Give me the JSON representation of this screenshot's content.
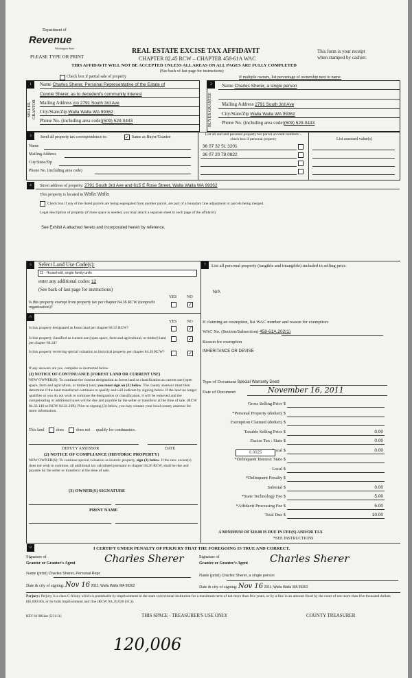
{
  "header": {
    "logo_top": "Department of",
    "logo_main": "Revenue",
    "logo_sub": "Washington State",
    "type_print": "PLEASE TYPE OR PRINT",
    "title": "REAL ESTATE EXCISE TAX AFFIDAVIT",
    "chapter": "CHAPTER 82.45 RCW – CHAPTER 458-61A WAC",
    "warning": "THIS AFFIDAVIT WILL NOT BE ACCEPTED UNLESS ALL AREAS ON ALL PAGES ARE FULLY COMPLETED",
    "see_back": "(See back of last page for instructions)",
    "receipt_1": "This form is your receipt",
    "receipt_2": "when stamped by cashier.",
    "partial_sale": "Check box if partial sale of property",
    "multiple_owners": "If multiple owners, list percentage of ownership next to name."
  },
  "seller": {
    "num": "1",
    "side": "SELLER GRANTOR",
    "name_label": "Name",
    "name_1": "Charles Sherer, Personal Representative of the Estate of",
    "name_2": "Connie Sherer, as to decedent's community interest",
    "mail_label": "Mailing Address",
    "mail": "c/o 2791 South 3rd Ave",
    "city_label": "City/State/Zip",
    "city": "Walla Walla WA 99362",
    "phone_label": "Phone No. (including area code)",
    "phone": "(509) 529-0443"
  },
  "buyer": {
    "num": "2",
    "side": "BUYER GRANTEE",
    "name_label": "Name",
    "name_1": "Charles Sherer, a single person",
    "mail_label": "Mailing Address",
    "mail": "2791 South 3rd Ave",
    "city_label": "City/State/Zip",
    "city": "Walla Walla WA 99362",
    "phone_label": "Phone No. (including area code)",
    "phone": "(509) 529-0443"
  },
  "section3": {
    "num": "3",
    "send_label": "Send all property tax correspondence to:",
    "same_as": "Same as Buyer/Grantee",
    "same_checked": true,
    "name_label": "Name",
    "mail_label": "Mailing Address",
    "city_label": "City/State/Zip",
    "phone_label": "Phone No. (including area code)",
    "parcel_header": "List all real and personal property tax parcel account numbers – check box if personal property",
    "assessed_header": "List assessed value(s)",
    "parcels": [
      "36 07 32 51 3201",
      "36 07 20 78 0822",
      "",
      ""
    ]
  },
  "section4": {
    "num": "4",
    "street_label": "Street address of property:",
    "street": "2791 South 3rd Ave and 615 E Rose Street, Walla Walla WA 99362",
    "located_label": "This property is located in",
    "located": "Walla Walla",
    "segregated": "Check box if any of the listed parcels are being segregated from another parcel, are part of a boundary line adjustment or parcels being merged.",
    "legal_label": "Legal description of property (if more space is needed, you may attach a separate sheet to each page of the affidavit)",
    "legal": "See Exhibit A attached hereto and incorporated herein by reference."
  },
  "section5": {
    "num": "5",
    "title": "Select Land Use Code(s):",
    "code": "11 - Household, single family units",
    "additional_label": "enter any additional codes:",
    "additional": "12",
    "see_back": "(See back of last page for instructions)",
    "yes": "YES",
    "no": "NO",
    "exempt_q": "Is this property exempt from property tax per chapter 84.36 RCW (nonprofit organization)?",
    "exempt_ans": "NO"
  },
  "section6": {
    "num": "6",
    "yes": "YES",
    "no": "NO",
    "questions": [
      {
        "q": "Is this property designated as forest land per chapter 84.33 RCW?",
        "ans": "NO"
      },
      {
        "q": "Is this property classified as current use (open space, farm and agricultural, or timber) land per chapter 84.34?",
        "ans": "NO"
      },
      {
        "q": "Is this property receiving special valuation as historical property per chapter 84.26 RCW?",
        "ans": "NO"
      }
    ],
    "if_yes": "If any answers are yes, complete as instructed below.",
    "notice1_title": "(1) NOTICE OF CONTINUANCE (FOREST LAND OR CURRENT USE)",
    "notice1_a": "NEW OWNER(S): To continue the current designation as forest land or classification as current use (open space, farm and agriculture, or timber) land, ",
    "notice1_bold": "you must sign on (3) below",
    "notice1_b": ". The county assessor must then determine if the land transferred continues to qualify and will indicate by signing below. If the land no longer qualifies or you do not wish to continue the designation or classification, it will be removed and the compensating or additional taxes will be due and payable by the seller or transferor at the time of sale. (RCW 84.33.140 or RCW 84.34.108). Prior to signing (3) below, you may contact your local county assessor for more information.",
    "this_land": "This land",
    "does": "does",
    "does_not": "does not",
    "qualify": "qualify for continuance.",
    "deputy": "DEPUTY ASSESSOR",
    "date": "DATE",
    "notice2_title": "(2) NOTICE OF COMPLIANCE (HISTORIC PROPERTY)",
    "notice2_a": "NEW OWNER(S): To continue special valuation as historic property, ",
    "notice2_bold": "sign (3) below",
    "notice2_b": ". If the new owner(s) does not wish to continue, all additional tax calculated pursuant to chapter 84.26 RCW, shall be due and payable by the seller or transferor at the time of sale.",
    "owner_sig": "(3) OWNER(S) SIGNATURE",
    "print_name": "PRINT NAME"
  },
  "section7": {
    "num": "7",
    "personal_label": "List all personal property (tangible and intangible) included in selling price.",
    "personal": "N/A",
    "exemption_label": "If claiming an exemption, list WAC number and reason for exemption:",
    "wac_label": "WAC No. (Section/Subsection)",
    "wac": "458-61A.202(1)",
    "reason_label": "Reason for exemption",
    "reason": "INHERITANCE OR DEVISE",
    "doc_type_label": "Type of Document",
    "doc_type": "Special Warranty Deed",
    "doc_date_label": "Date of Document",
    "doc_date": "November 16, 2011",
    "local_rate": "0.0025",
    "fees": [
      {
        "label": "Gross Selling Price $",
        "value": ""
      },
      {
        "label": "*Personal Property (deduct) $",
        "value": ""
      },
      {
        "label": "Exemption Claimed (deduct) $",
        "value": ""
      },
      {
        "label": "Taxable Selling Price $",
        "value": "0.00"
      },
      {
        "label": "Excise Tax : State $",
        "value": "0.00"
      },
      {
        "label": "Local $",
        "value": "0.00"
      },
      {
        "label": "*Delinquent Interest: State $",
        "value": ""
      },
      {
        "label": "Local $",
        "value": ""
      },
      {
        "label": "*Delinquent Penalty $",
        "value": ""
      },
      {
        "label": "Subtotal $",
        "value": "0.00"
      },
      {
        "label": "*State Technology Fee $",
        "value": "5.00"
      },
      {
        "label": "*Affidavit Processing Fee $",
        "value": "5.00"
      },
      {
        "label": "Total Due $",
        "value": "10.00"
      }
    ],
    "minimum": "A MINIMUM OF $10.00 IS DUE IN FEE(S) AND/OR TAX",
    "see_instr": "*SEE INSTRUCTIONS"
  },
  "section8": {
    "num": "8",
    "certify": "I CERTIFY UNDER PENALTY OF PERJURY THAT THE FOREGOING IS TRUE AND CORRECT.",
    "sig_of": "Signature of",
    "grantor_agent": "Grantor or Grantor's Agent",
    "grantee_agent": "Grantee or Grantee's Agent",
    "grantor_sig": "Charles Sherer",
    "grantee_sig": "Charles Sherer",
    "name_print": "Name (print)",
    "grantor_name": "Charles Sherer, Personal Repr.",
    "grantee_name": "Charles Sherer, a single person",
    "date_city": "Date & city of signing:",
    "grantor_date_hand": "Nov 16",
    "grantor_date": "2011; Walla Walla WA 99362",
    "grantee_date_hand": "Nov 16",
    "grantee_date": "2011; Walla Walla WA 99362"
  },
  "footer": {
    "perjury_bold": "Perjury:",
    "perjury": " Perjury is a class C felony which is punishable by imprisonment in the state correctional institution for a maximum term of not more than five years, or by a fine in an amount fixed by the court of not more than five thousand dollars ($5,000.00), or by both imprisonment and fine (RCW 9A.20.020 (1C)).",
    "rev": "REV 84 0001ae (5/31/11)",
    "treasurer_only": "THIS SPACE - TREASURER'S USE ONLY",
    "county_treasurer": "COUNTY TREASURER",
    "handwritten": "120,006"
  }
}
